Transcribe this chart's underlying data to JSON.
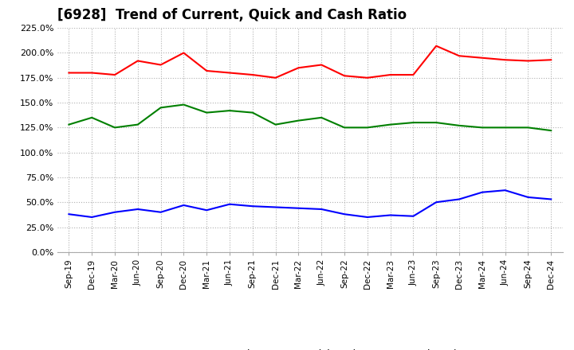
{
  "title": "[6928]  Trend of Current, Quick and Cash Ratio",
  "title_fontsize": 12,
  "x_labels": [
    "Sep-19",
    "Dec-19",
    "Mar-20",
    "Jun-20",
    "Sep-20",
    "Dec-20",
    "Mar-21",
    "Jun-21",
    "Sep-21",
    "Dec-21",
    "Mar-22",
    "Jun-22",
    "Sep-22",
    "Dec-22",
    "Mar-23",
    "Jun-23",
    "Sep-23",
    "Dec-23",
    "Mar-24",
    "Jun-24",
    "Sep-24",
    "Dec-24"
  ],
  "current_ratio": [
    1.8,
    1.8,
    1.78,
    1.92,
    1.88,
    2.0,
    1.82,
    1.8,
    1.78,
    1.75,
    1.85,
    1.88,
    1.77,
    1.75,
    1.78,
    1.78,
    2.07,
    1.97,
    1.95,
    1.93,
    1.92,
    1.93
  ],
  "quick_ratio": [
    1.28,
    1.35,
    1.25,
    1.28,
    1.45,
    1.48,
    1.4,
    1.42,
    1.4,
    1.28,
    1.32,
    1.35,
    1.25,
    1.25,
    1.28,
    1.3,
    1.3,
    1.27,
    1.25,
    1.25,
    1.25,
    1.22
  ],
  "cash_ratio": [
    0.38,
    0.35,
    0.4,
    0.43,
    0.4,
    0.47,
    0.42,
    0.48,
    0.46,
    0.45,
    0.44,
    0.43,
    0.38,
    0.35,
    0.37,
    0.36,
    0.5,
    0.53,
    0.6,
    0.62,
    0.55,
    0.53
  ],
  "current_color": "#ff0000",
  "quick_color": "#008000",
  "cash_color": "#0000ff",
  "bg_color": "#ffffff",
  "plot_bg_color": "#ffffff",
  "grid_color": "#b0b0b0",
  "line_width": 1.5,
  "ylim": [
    0.0,
    2.25
  ],
  "yticks": [
    0.0,
    0.25,
    0.5,
    0.75,
    1.0,
    1.25,
    1.5,
    1.75,
    2.0,
    2.25
  ],
  "ytick_labels": [
    "0.0%",
    "25.0%",
    "50.0%",
    "75.0%",
    "100.0%",
    "125.0%",
    "150.0%",
    "175.0%",
    "200.0%",
    "225.0%"
  ]
}
